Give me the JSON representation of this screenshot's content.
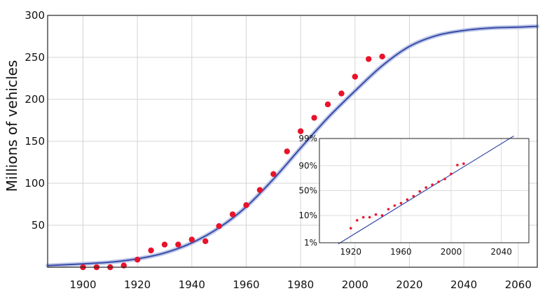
{
  "chart_data": [
    {
      "type": "scatter",
      "ylabel": "Millions of vehicles",
      "xlim": [
        1887,
        2067
      ],
      "ylim": [
        0,
        300
      ],
      "x_ticks": [
        1900,
        1920,
        1940,
        1960,
        1980,
        2000,
        2020,
        2040,
        2060
      ],
      "y_ticks": [
        50,
        100,
        150,
        200,
        250,
        300
      ],
      "grid": true,
      "series": [
        {
          "kind": "points",
          "color": "#e8132b",
          "x": [
            1900,
            1905,
            1910,
            1915,
            1920,
            1925,
            1930,
            1935,
            1940,
            1945,
            1950,
            1955,
            1960,
            1965,
            1970,
            1975,
            1980,
            1985,
            1990,
            1995,
            2000,
            2005,
            2010
          ],
          "y": [
            0,
            0,
            0,
            2,
            9,
            20,
            27,
            27,
            33,
            31,
            49,
            63,
            74,
            92,
            111,
            138,
            162,
            178,
            194,
            207,
            227,
            248,
            251
          ]
        },
        {
          "kind": "fit-curve",
          "color": "#3a4aa8",
          "x": [
            1887,
            1900,
            1910,
            1920,
            1930,
            1940,
            1950,
            1960,
            1970,
            1980,
            1990,
            2000,
            2010,
            2020,
            2030,
            2040,
            2050,
            2060,
            2067
          ],
          "y": [
            2,
            4,
            6,
            10,
            17,
            29,
            47,
            72,
            105,
            142,
            178,
            210,
            240,
            263,
            276,
            282,
            285,
            286,
            287
          ]
        }
      ]
    },
    {
      "type": "scatter",
      "inset": true,
      "xlim": [
        1895,
        2062
      ],
      "y_ticks": [
        "1%",
        "10%",
        "50%",
        "90%",
        "99%"
      ],
      "x_ticks": [
        1920,
        1960,
        2000,
        2040
      ],
      "grid": true,
      "series": [
        {
          "kind": "points",
          "color": "#e8132b",
          "x": [
            1920,
            1925,
            1930,
            1935,
            1940,
            1945,
            1950,
            1955,
            1960,
            1965,
            1970,
            1975,
            1980,
            1985,
            1990,
            1995,
            2000,
            2005,
            2010
          ],
          "y_pct": [
            3.5,
            6.8,
            8.7,
            8.7,
            10.8,
            10.1,
            16.3,
            21.1,
            24.9,
            31.3,
            38.1,
            48.1,
            56.8,
            62.7,
            68.5,
            73.6,
            81.4,
            90.5,
            91.5
          ]
        },
        {
          "kind": "fit-line",
          "color": "#3a4aa8",
          "x": [
            1910,
            2050
          ],
          "y_pct": [
            0.9,
            99.2
          ]
        }
      ]
    }
  ]
}
